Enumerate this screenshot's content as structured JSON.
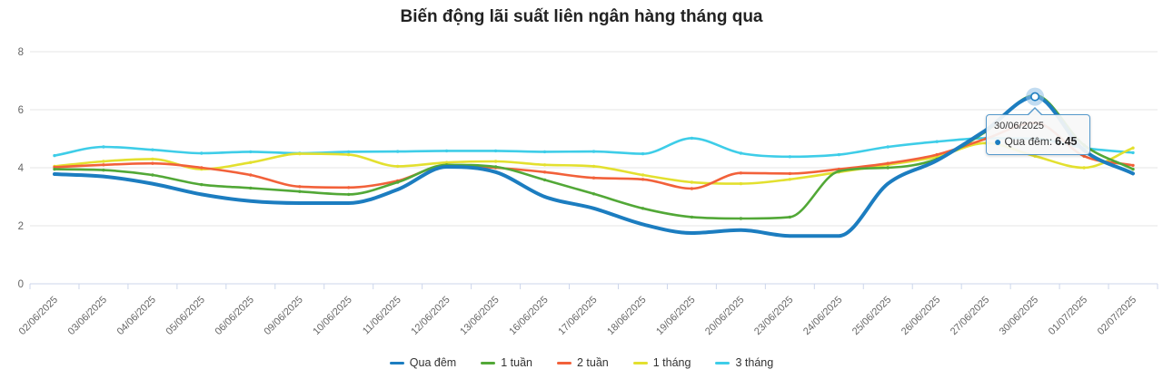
{
  "title": "Biến động lãi suất liên ngân hàng tháng qua",
  "chart_data": {
    "type": "line",
    "title": "Biến động lãi suất liên ngân hàng tháng qua",
    "xlabel": "",
    "ylabel": "",
    "ylim": [
      0,
      8
    ],
    "yticks": [
      0,
      2,
      4,
      6,
      8
    ],
    "grid": true,
    "legend_position": "bottom",
    "categories": [
      "02/06/2025",
      "03/06/2025",
      "04/06/2025",
      "05/06/2025",
      "06/06/2025",
      "09/06/2025",
      "10/06/2025",
      "11/06/2025",
      "12/06/2025",
      "13/06/2025",
      "16/06/2025",
      "17/06/2025",
      "18/06/2025",
      "19/06/2025",
      "20/06/2025",
      "23/06/2025",
      "24/06/2025",
      "25/06/2025",
      "26/06/2025",
      "27/06/2025",
      "30/06/2025",
      "01/07/2025",
      "02/07/2025"
    ],
    "series": [
      {
        "id": "qua-dem",
        "name": "Qua đêm",
        "color": "#1c7dc0",
        "width": 4,
        "values": [
          3.78,
          3.7,
          3.45,
          3.08,
          2.85,
          2.78,
          2.78,
          3.25,
          4.03,
          3.85,
          3.0,
          2.6,
          2.05,
          1.75,
          1.85,
          1.65,
          1.65,
          3.45,
          4.25,
          5.3,
          6.45,
          4.6,
          3.8
        ]
      },
      {
        "id": "1-tuan",
        "name": "1 tuần",
        "color": "#52a837",
        "width": 2.6,
        "values": [
          3.95,
          3.92,
          3.75,
          3.42,
          3.3,
          3.18,
          3.08,
          3.5,
          4.1,
          4.03,
          3.58,
          3.1,
          2.6,
          2.3,
          2.25,
          2.3,
          3.88,
          4.0,
          4.3,
          5.25,
          6.5,
          4.78,
          3.95
        ]
      },
      {
        "id": "2-tuan",
        "name": "2 tuần",
        "color": "#f2613a",
        "width": 2.6,
        "values": [
          4.02,
          4.1,
          4.15,
          4.0,
          3.75,
          3.35,
          3.32,
          3.55,
          4.08,
          4.0,
          3.85,
          3.65,
          3.6,
          3.28,
          3.82,
          3.8,
          3.95,
          4.15,
          4.45,
          5.0,
          5.55,
          4.4,
          4.08
        ]
      },
      {
        "id": "1-thang",
        "name": "1 tháng",
        "color": "#e3e02f",
        "width": 2.6,
        "values": [
          4.05,
          4.22,
          4.3,
          3.95,
          4.18,
          4.48,
          4.45,
          4.05,
          4.18,
          4.22,
          4.1,
          4.05,
          3.75,
          3.5,
          3.45,
          3.6,
          3.85,
          4.1,
          4.38,
          4.85,
          4.4,
          4.0,
          4.68
        ]
      },
      {
        "id": "3-thang",
        "name": "3 tháng",
        "color": "#3ecde8",
        "width": 2.6,
        "values": [
          4.42,
          4.72,
          4.62,
          4.5,
          4.55,
          4.5,
          4.55,
          4.56,
          4.58,
          4.58,
          4.55,
          4.56,
          4.48,
          5.02,
          4.5,
          4.38,
          4.45,
          4.72,
          4.9,
          5.02,
          5.0,
          4.68,
          4.52
        ]
      }
    ]
  },
  "tooltip": {
    "date": "30/06/2025",
    "series": "Qua đêm",
    "separator": ":",
    "value": "6.45",
    "point_index": 20,
    "bullet": "●"
  },
  "theme": {
    "grid_color": "#e6e6e6",
    "axis_color": "#ccd6eb",
    "tick_label_color": "#666666",
    "halo_color": "#8fc0e6"
  }
}
